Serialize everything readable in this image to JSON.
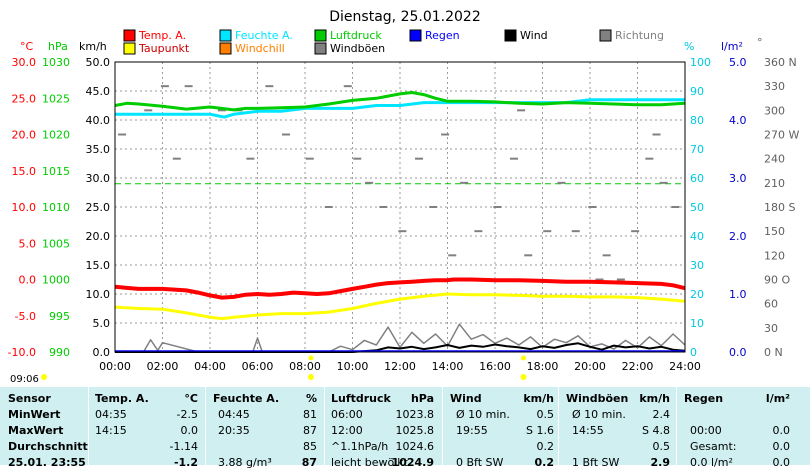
{
  "chart_data": {
    "type": "line",
    "title": "Dienstag, 25.01.2022",
    "time_label": "09:06",
    "x_ticks": [
      "00:00",
      "02:00",
      "04:00",
      "06:00",
      "08:00",
      "10:00",
      "12:00",
      "14:00",
      "16:00",
      "18:00",
      "20:00",
      "22:00",
      "24:00"
    ],
    "axes": {
      "temp": {
        "unit": "°C",
        "ticks": [
          "30.0",
          "25.0",
          "20.0",
          "15.0",
          "10.0",
          "5.0",
          "0.0",
          "-5.0",
          "-10.0"
        ],
        "range": [
          -10,
          30
        ]
      },
      "pressure": {
        "unit": "hPa",
        "ticks": [
          "1030",
          "1025",
          "1020",
          "1015",
          "1010",
          "1005",
          "1000",
          "995",
          "990"
        ],
        "range": [
          990,
          1030
        ]
      },
      "wind": {
        "unit": "km/h",
        "ticks": [
          "50.0",
          "45.0",
          "40.0",
          "35.0",
          "30.0",
          "25.0",
          "20.0",
          "15.0",
          "10.0",
          "5.0",
          "0.0"
        ],
        "range": [
          0,
          50
        ]
      },
      "humidity": {
        "unit": "%",
        "ticks": [
          "100",
          "90",
          "80",
          "70",
          "60",
          "50",
          "40",
          "30",
          "20",
          "10",
          "0"
        ],
        "range": [
          0,
          100
        ]
      },
      "rain": {
        "unit": "l/m²",
        "ticks": [
          "5.0",
          "4.0",
          "3.0",
          "2.0",
          "1.0",
          "0.0"
        ],
        "range": [
          0,
          5
        ]
      },
      "direction": {
        "unit": "°",
        "ticks": [
          "360 N",
          "330",
          "300",
          "270 W",
          "240",
          "210",
          "180 S",
          "150",
          "120",
          "90  O",
          "60",
          "30",
          "0   N"
        ],
        "range": [
          0,
          360
        ]
      }
    },
    "legend": [
      {
        "label": "Temp. A.",
        "color": "#ff0000"
      },
      {
        "label": "Feuchte A.",
        "color": "#00e5ff"
      },
      {
        "label": "Luftdruck",
        "color": "#00cc00"
      },
      {
        "label": "Regen",
        "color": "#0000ff"
      },
      {
        "label": "Wind",
        "color": "#000000"
      },
      {
        "label": "Richtung",
        "color": "#808080"
      },
      {
        "label": "Taupunkt",
        "color": "#ffff00"
      },
      {
        "label": "Windchill",
        "color": "#ff8000"
      },
      {
        "label": "Windböen",
        "color": "#808080"
      }
    ],
    "series": [
      {
        "name": "Temp. A.",
        "axis": "temp",
        "color": "#ff0000",
        "x": [
          0,
          1,
          2,
          2.5,
          3,
          3.5,
          4,
          4.5,
          5,
          5.5,
          6,
          6.5,
          7,
          7.5,
          8,
          8.5,
          9,
          9.5,
          10,
          10.5,
          11,
          11.5,
          12,
          12.5,
          13,
          13.5,
          14,
          14.25,
          15,
          16,
          17,
          18,
          19,
          20,
          21,
          22,
          23,
          23.5,
          24
        ],
        "y": [
          -1.0,
          -1.3,
          -1.3,
          -1.4,
          -1.5,
          -1.8,
          -2.2,
          -2.5,
          -2.4,
          -2.1,
          -2.0,
          -2.1,
          -2.0,
          -1.8,
          -1.9,
          -2.0,
          -1.9,
          -1.6,
          -1.3,
          -1.0,
          -0.7,
          -0.5,
          -0.4,
          -0.3,
          -0.2,
          -0.1,
          -0.1,
          0.0,
          0.0,
          -0.1,
          -0.1,
          -0.2,
          -0.3,
          -0.3,
          -0.4,
          -0.5,
          -0.6,
          -0.8,
          -1.2
        ]
      },
      {
        "name": "Taupunkt",
        "axis": "temp",
        "color": "#ffff00",
        "x": [
          0,
          1,
          2,
          3,
          4,
          4.5,
          5,
          6,
          7,
          8,
          9,
          10,
          11,
          12,
          13,
          14,
          15,
          16,
          17,
          18,
          19,
          20,
          21,
          22,
          23,
          24
        ],
        "y": [
          -3.8,
          -4.0,
          -4.1,
          -4.6,
          -5.2,
          -5.4,
          -5.2,
          -4.9,
          -4.7,
          -4.7,
          -4.5,
          -4.0,
          -3.3,
          -2.7,
          -2.3,
          -2.0,
          -2.1,
          -2.1,
          -2.2,
          -2.3,
          -2.3,
          -2.4,
          -2.4,
          -2.5,
          -2.7,
          -3.0
        ]
      },
      {
        "name": "Feuchte A.",
        "axis": "humidity",
        "color": "#00e5ff",
        "x": [
          0,
          2,
          4,
          4.6,
          5,
          6,
          7,
          8,
          9,
          10,
          11,
          12,
          13,
          14,
          15,
          16,
          17,
          18,
          19,
          20,
          21,
          22,
          23,
          24
        ],
        "y": [
          82,
          82,
          82,
          81,
          82,
          83,
          83,
          84,
          84,
          84,
          85,
          85,
          86,
          86,
          86,
          86,
          86,
          86,
          86,
          87,
          87,
          87,
          87,
          87
        ]
      },
      {
        "name": "Luftdruck",
        "axis": "pressure",
        "color": "#00cc00",
        "x": [
          0,
          0.5,
          1,
          2,
          3,
          4,
          5,
          5.5,
          6,
          7,
          8,
          9,
          10,
          11,
          12,
          12.5,
          13,
          13.5,
          14,
          15,
          16,
          17,
          18,
          19,
          20,
          21,
          22,
          23,
          24
        ],
        "y": [
          1024.0,
          1024.3,
          1024.2,
          1023.9,
          1023.5,
          1023.8,
          1023.4,
          1023.6,
          1023.6,
          1023.7,
          1023.8,
          1024.2,
          1024.7,
          1025.0,
          1025.6,
          1025.8,
          1025.5,
          1025.0,
          1024.6,
          1024.6,
          1024.5,
          1024.3,
          1024.2,
          1024.4,
          1024.3,
          1024.2,
          1024.1,
          1024.1,
          1024.3
        ]
      },
      {
        "name": "Wind",
        "axis": "wind",
        "color": "#000000",
        "x": [
          0,
          10,
          11,
          11.5,
          12,
          12.5,
          13,
          13.5,
          14,
          14.5,
          15,
          15.5,
          16,
          16.5,
          17,
          17.5,
          18,
          18.5,
          19,
          19.5,
          20,
          20.5,
          21,
          21.5,
          22,
          22.5,
          23,
          23.5,
          24
        ],
        "y": [
          0,
          0,
          0.3,
          0.8,
          0.6,
          0.9,
          0.5,
          0.8,
          1.2,
          0.7,
          1.1,
          0.9,
          1.3,
          1.0,
          0.8,
          0.5,
          1.0,
          0.7,
          1.2,
          1.5,
          0.9,
          0.4,
          1.1,
          0.8,
          1.0,
          0.6,
          0.9,
          0.4,
          0.2
        ]
      },
      {
        "name": "Windböen",
        "axis": "wind",
        "color": "#808080",
        "x": [
          0,
          1.2,
          1.5,
          1.8,
          2.0,
          3.5,
          4.0,
          5.8,
          6.0,
          6.2,
          7.5,
          9.0,
          9.5,
          10.0,
          10.5,
          11.0,
          11.5,
          12.0,
          12.5,
          13.0,
          13.5,
          14.0,
          14.5,
          15.0,
          15.5,
          16.0,
          16.5,
          17.0,
          17.5,
          18.0,
          18.5,
          19.0,
          19.5,
          20.0,
          20.5,
          21.0,
          21.5,
          22.0,
          22.5,
          23.0,
          23.5,
          24
        ],
        "y": [
          0,
          0,
          2.1,
          0.3,
          1.6,
          0,
          0,
          0,
          2.4,
          0,
          0,
          0,
          1.0,
          0.4,
          2.0,
          1.2,
          4.3,
          0.8,
          3.4,
          1.5,
          3.1,
          1.0,
          4.8,
          2.2,
          3.0,
          1.5,
          2.4,
          1.2,
          2.6,
          0.8,
          2.2,
          1.6,
          2.8,
          0.9,
          1.4,
          0.5,
          2.0,
          0.7,
          2.6,
          1.1,
          3.1,
          1.2
        ]
      }
    ],
    "direction_marks": {
      "x": [
        0.3,
        1.4,
        2.1,
        3.1,
        4.5,
        5.7,
        6.5,
        7.2,
        8.2,
        9.0,
        10.2,
        10.7,
        11.3,
        12.1,
        12.8,
        13.4,
        14.2,
        14.7,
        15.3,
        16.1,
        16.8,
        17.4,
        18.2,
        18.8,
        19.4,
        20.1,
        20.7,
        21.3,
        21.9,
        22.5,
        23.1,
        23.6,
        2.6,
        5.2,
        9.8,
        13.9,
        17.1,
        20.4,
        22.8
      ],
      "y": [
        270,
        300,
        330,
        330,
        300,
        240,
        330,
        270,
        240,
        180,
        240,
        210,
        180,
        150,
        240,
        180,
        120,
        210,
        150,
        180,
        240,
        120,
        150,
        210,
        150,
        180,
        120,
        90,
        150,
        240,
        210,
        180,
        240,
        300,
        330,
        270,
        300,
        90,
        270
      ]
    },
    "dew_reference": {
      "axis": "humidity",
      "value": 58,
      "color": "#00cc00"
    },
    "markers": [
      {
        "x": 8.25,
        "color": "#ffff00"
      },
      {
        "x": 17.2,
        "color": "#ffff00"
      }
    ],
    "xlim": [
      0,
      24
    ],
    "grid": true,
    "legend_position": "top"
  },
  "table": {
    "headers": [
      "Sensor",
      "Temp. A.",
      "°C",
      "Feuchte A.",
      "%",
      "Luftdruck",
      "hPa",
      "Wind",
      "km/h",
      "Windböen",
      "km/h",
      "Regen",
      "l/m²"
    ],
    "rows": [
      {
        "label": "MinWert",
        "temp_time": "04:35",
        "temp": "-2.5",
        "hum_time": "04:45",
        "hum": "81",
        "press_time": "06:00",
        "press": "1023.8",
        "wind_note": "Ø 10 min.",
        "wind": "0.5",
        "gust_note": "Ø 10 min.",
        "gust": "2.4",
        "rain_note": "",
        "rain": ""
      },
      {
        "label": "MaxWert",
        "temp_time": "14:15",
        "temp": "0.0",
        "hum_time": "20:35",
        "hum": "87",
        "press_time": "12:00",
        "press": "1025.8",
        "wind_note": "19:55",
        "wind": "S 1.6",
        "gust_note": "14:55",
        "gust": "S 4.8",
        "rain_note": "00:00",
        "rain": "0.0"
      },
      {
        "label": "Durchschnitt",
        "temp_time": "",
        "temp": "-1.14",
        "hum_time": "",
        "hum": "85",
        "press_time": "^1.1hPa/h",
        "press": "1024.6",
        "wind_note": "",
        "wind": "0.2",
        "gust_note": "",
        "gust": "0.5",
        "rain_note": "Gesamt:",
        "rain": "0.0"
      },
      {
        "label": "25.01. 23:55",
        "temp_time": "",
        "temp": "-1.2",
        "hum_time": "3.88 g/m³",
        "hum": "87",
        "press_time": "leicht bewölkt",
        "press": "1024.9",
        "wind_note": "0 Bft SW",
        "wind": "0.2",
        "gust_note": "1 Bft SW",
        "gust": "2.9",
        "rain_note": "0.0 l/m²",
        "rain": "0.0"
      }
    ]
  }
}
